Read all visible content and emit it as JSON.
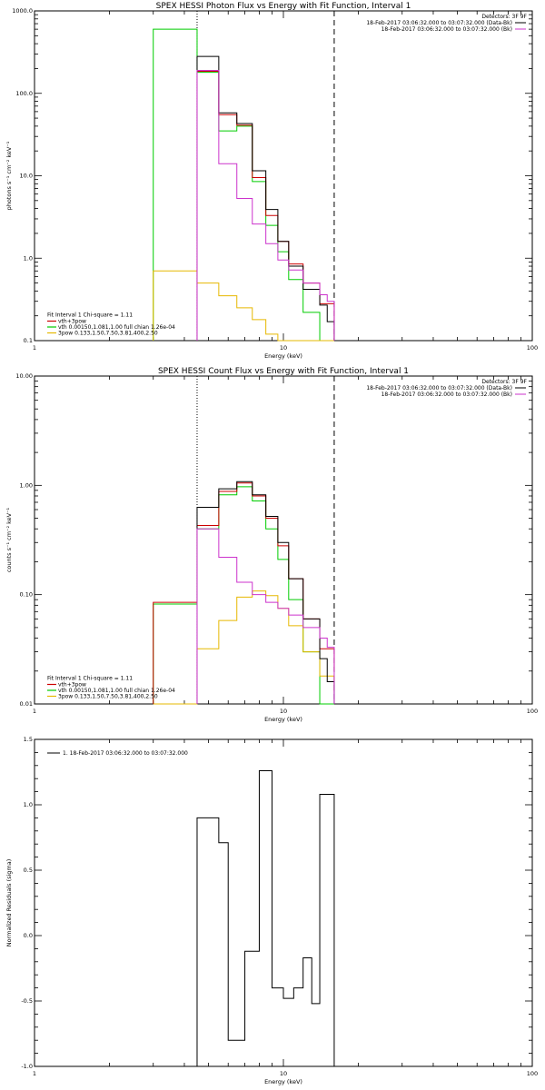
{
  "chart_data": [
    {
      "type": "line",
      "step": true,
      "title": "SPEX HESSI Photon Flux vs Energy with Fit Function, Interval 1",
      "xlabel": "Energy (keV)",
      "ylabel": "photons s⁻¹ cm⁻² keV⁻¹",
      "xscale": "log",
      "yscale": "log",
      "xlim": [
        1,
        100
      ],
      "ylim": [
        0.1,
        1000
      ],
      "xticks": [
        {
          "v": 1,
          "label": "1"
        },
        {
          "v": 10,
          "label": "10"
        },
        {
          "v": 100,
          "label": "100"
        }
      ],
      "yticks": [
        {
          "v": 0.1,
          "label": "0.1"
        },
        {
          "v": 1,
          "label": "1.0"
        },
        {
          "v": 10,
          "label": "10.0"
        },
        {
          "v": 100,
          "label": "100.0"
        },
        {
          "v": 1000,
          "label": "1000.0"
        }
      ],
      "vlines": [
        {
          "x": 4.5,
          "style": "dotted"
        },
        {
          "x": 16,
          "style": "dashed"
        }
      ],
      "edges": [
        3.0,
        3.5,
        4.0,
        4.5,
        5.0,
        5.5,
        6.0,
        6.5,
        7.0,
        7.5,
        8.0,
        8.5,
        9.0,
        9.5,
        10.0,
        10.5,
        11.0,
        12.0,
        13.0,
        14.0,
        15.0,
        16.0
      ],
      "legend_top": {
        "position": "top-right",
        "header": "Detectors: 3F 9F",
        "entries": [
          {
            "text": "18-Feb-2017 03:06:32.000 to 03:07:32.000 (Data-Bk)",
            "color": "#000000"
          },
          {
            "text": "18-Feb-2017 03:06:32.000 to 03:07:32.000 (Bk)",
            "color": "#cc33cc"
          }
        ]
      },
      "legend_bottom": {
        "position": "bottom-left",
        "header": "Fit Interval 1   Chi-square = 1.11",
        "entries": [
          {
            "text": "vth+3pow",
            "color": "#cc0000"
          },
          {
            "text": "vth 0.00150,1.081,1.00  full chian 1.26e-04",
            "color": "#00cc00"
          },
          {
            "text": "3pow 0.133,1.50,7.50,3.81,400,2.50",
            "color": "#e6b800"
          }
        ]
      },
      "series": [
        {
          "name": "vth 0.00150,1.081,1.00  full chian 1.26e-04",
          "color": "#00cc00",
          "startIndex": 0,
          "values": [
            600,
            600,
            600,
            180,
            180,
            35,
            35,
            40,
            40,
            8.5,
            8.5,
            2.5,
            2.5,
            1.2,
            1.2,
            0.55,
            0.55,
            0.22,
            0.22,
            0.1,
            0.1,
            0.1
          ]
        },
        {
          "name": "3pow 0.133,1.50,7.50,3.81,400,2.50",
          "color": "#e6b800",
          "startIndex": 0,
          "values": [
            0.7,
            0.7,
            0.7,
            0.5,
            0.5,
            0.35,
            0.35,
            0.25,
            0.25,
            0.18,
            0.18,
            0.12,
            0.12,
            0.1,
            0.1,
            0.1,
            0.1,
            0.1,
            0.1,
            0.1,
            0.1,
            0.1
          ]
        },
        {
          "name": "vth+3pow",
          "color": "#cc0000",
          "startIndex": 3,
          "values": [
            185,
            185,
            55,
            55,
            41,
            41,
            9.5,
            9.5,
            3.3,
            3.3,
            1.6,
            1.6,
            0.85,
            0.85,
            0.5,
            0.5,
            0.28,
            0.28
          ]
        },
        {
          "name": "Data-Bk",
          "color": "#000000",
          "startIndex": 3,
          "values": [
            280,
            280,
            58,
            58,
            43,
            43,
            11.5,
            11.5,
            3.9,
            3.9,
            1.6,
            1.6,
            0.8,
            0.8,
            0.42,
            0.42,
            0.27,
            0.17
          ]
        },
        {
          "name": "Bk",
          "color": "#cc33cc",
          "startIndex": 3,
          "values": [
            190,
            190,
            14,
            14,
            5.3,
            5.3,
            2.6,
            2.6,
            1.5,
            1.5,
            0.95,
            0.95,
            0.72,
            0.72,
            0.5,
            0.5,
            0.36,
            0.3
          ]
        }
      ]
    },
    {
      "type": "line",
      "step": true,
      "title": "SPEX HESSI Count Flux vs Energy with Fit Function, Interval 1",
      "xlabel": "Energy (keV)",
      "ylabel": "counts s⁻¹ cm⁻² keV⁻¹",
      "xscale": "log",
      "yscale": "log",
      "xlim": [
        1,
        100
      ],
      "ylim": [
        0.01,
        10
      ],
      "xticks": [
        {
          "v": 1,
          "label": "1"
        },
        {
          "v": 10,
          "label": "10"
        },
        {
          "v": 100,
          "label": "100"
        }
      ],
      "yticks": [
        {
          "v": 0.01,
          "label": "0.01"
        },
        {
          "v": 0.1,
          "label": "0.10"
        },
        {
          "v": 1,
          "label": "1.00"
        },
        {
          "v": 10,
          "label": "10.00"
        }
      ],
      "vlines": [
        {
          "x": 4.5,
          "style": "dotted"
        },
        {
          "x": 16,
          "style": "dashed"
        }
      ],
      "edges": [
        3.0,
        3.5,
        4.0,
        4.5,
        5.0,
        5.5,
        6.0,
        6.5,
        7.0,
        7.5,
        8.0,
        8.5,
        9.0,
        9.5,
        10.0,
        10.5,
        11.0,
        12.0,
        13.0,
        14.0,
        15.0,
        16.0
      ],
      "legend_top": {
        "position": "top-right",
        "header": "Detectors: 3F 9F",
        "entries": [
          {
            "text": "18-Feb-2017 03:06:32.000 to 03:07:32.000 (Data-Bk)",
            "color": "#000000"
          },
          {
            "text": "18-Feb-2017 03:06:32.000 to 03:07:32.000 (Bk)",
            "color": "#cc33cc"
          }
        ]
      },
      "legend_bottom": {
        "position": "bottom-left",
        "header": "Fit Interval 1   Chi-square = 1.11",
        "entries": [
          {
            "text": "vth+3pow",
            "color": "#cc0000"
          },
          {
            "text": "vth 0.00150,1.081,1.00  full chian 1.26e-04",
            "color": "#00cc00"
          },
          {
            "text": "3pow 0.133,1.50,7.50,3.81,400,2.50",
            "color": "#e6b800"
          }
        ]
      },
      "series": [
        {
          "name": "vth 0.00150,1.081,1.00  full chian 1.26e-04",
          "color": "#00cc00",
          "startIndex": 0,
          "values": [
            0.082,
            0.082,
            0.082,
            0.4,
            0.4,
            0.82,
            0.82,
            0.97,
            0.97,
            0.72,
            0.72,
            0.4,
            0.4,
            0.21,
            0.21,
            0.09,
            0.09,
            0.03,
            0.03,
            0.01,
            0.01,
            0.01
          ]
        },
        {
          "name": "3pow 0.133,1.50,7.50,3.81,400,2.50",
          "color": "#e6b800",
          "startIndex": 0,
          "values": [
            0.01,
            0.01,
            0.01,
            0.032,
            0.032,
            0.058,
            0.058,
            0.095,
            0.095,
            0.108,
            0.108,
            0.098,
            0.098,
            0.075,
            0.075,
            0.052,
            0.052,
            0.03,
            0.03,
            0.018,
            0.018,
            0.013
          ]
        },
        {
          "name": "vth+3pow",
          "color": "#cc0000",
          "startIndex": 0,
          "values": [
            0.085,
            0.085,
            0.085,
            0.43,
            0.43,
            0.88,
            0.88,
            1.05,
            1.05,
            0.8,
            0.8,
            0.5,
            0.5,
            0.28,
            0.28,
            0.14,
            0.14,
            0.06,
            0.06,
            0.032,
            0.032,
            0.02
          ]
        },
        {
          "name": "Data-Bk",
          "color": "#000000",
          "startIndex": 3,
          "values": [
            0.63,
            0.63,
            0.93,
            0.93,
            1.08,
            1.08,
            0.82,
            0.82,
            0.52,
            0.52,
            0.3,
            0.3,
            0.14,
            0.14,
            0.06,
            0.06,
            0.026,
            0.016
          ]
        },
        {
          "name": "Bk",
          "color": "#cc33cc",
          "startIndex": 3,
          "values": [
            0.4,
            0.4,
            0.22,
            0.22,
            0.13,
            0.13,
            0.1,
            0.1,
            0.085,
            0.085,
            0.075,
            0.075,
            0.065,
            0.065,
            0.05,
            0.05,
            0.04,
            0.033
          ]
        }
      ]
    },
    {
      "type": "line",
      "step": true,
      "title": "",
      "xlabel": "Energy (keV)",
      "ylabel": "Normalized Residuals (sigma)",
      "xscale": "log",
      "yscale": "linear",
      "xlim": [
        1,
        100
      ],
      "ylim": [
        -1.0,
        1.5
      ],
      "xticks": [
        {
          "v": 1,
          "label": "1"
        },
        {
          "v": 10,
          "label": "10"
        },
        {
          "v": 100,
          "label": "100"
        }
      ],
      "yticks": [
        {
          "v": -1.0,
          "label": "-1.0"
        },
        {
          "v": -0.5,
          "label": "-0.5"
        },
        {
          "v": 0.0,
          "label": "0.0"
        },
        {
          "v": 0.5,
          "label": "0.5"
        },
        {
          "v": 1.0,
          "label": "1.0"
        },
        {
          "v": 1.5,
          "label": "1.5"
        }
      ],
      "vlines": [],
      "edges": [
        4.5,
        5.5,
        6.0,
        7.0,
        8.0,
        9.0,
        10.0,
        11.0,
        12.0,
        13.0,
        14.0,
        15.0,
        16.0
      ],
      "legend_top": {
        "position": "top-left",
        "header": "",
        "entries": [
          {
            "text": "1. 18-Feb-2017 03:06:32.000 to 03:07:32.000",
            "color": "#000000"
          }
        ]
      },
      "legend_bottom": {
        "position": "",
        "header": "",
        "entries": []
      },
      "series": [
        {
          "name": "1. 18-Feb-2017 03:06:32.000 to 03:07:32.000",
          "color": "#000000",
          "startIndex": 0,
          "values": [
            0.9,
            0.71,
            -0.8,
            -0.12,
            1.26,
            -0.4,
            -0.48,
            -0.4,
            -0.17,
            -0.52,
            1.08,
            1.08
          ]
        }
      ]
    }
  ]
}
